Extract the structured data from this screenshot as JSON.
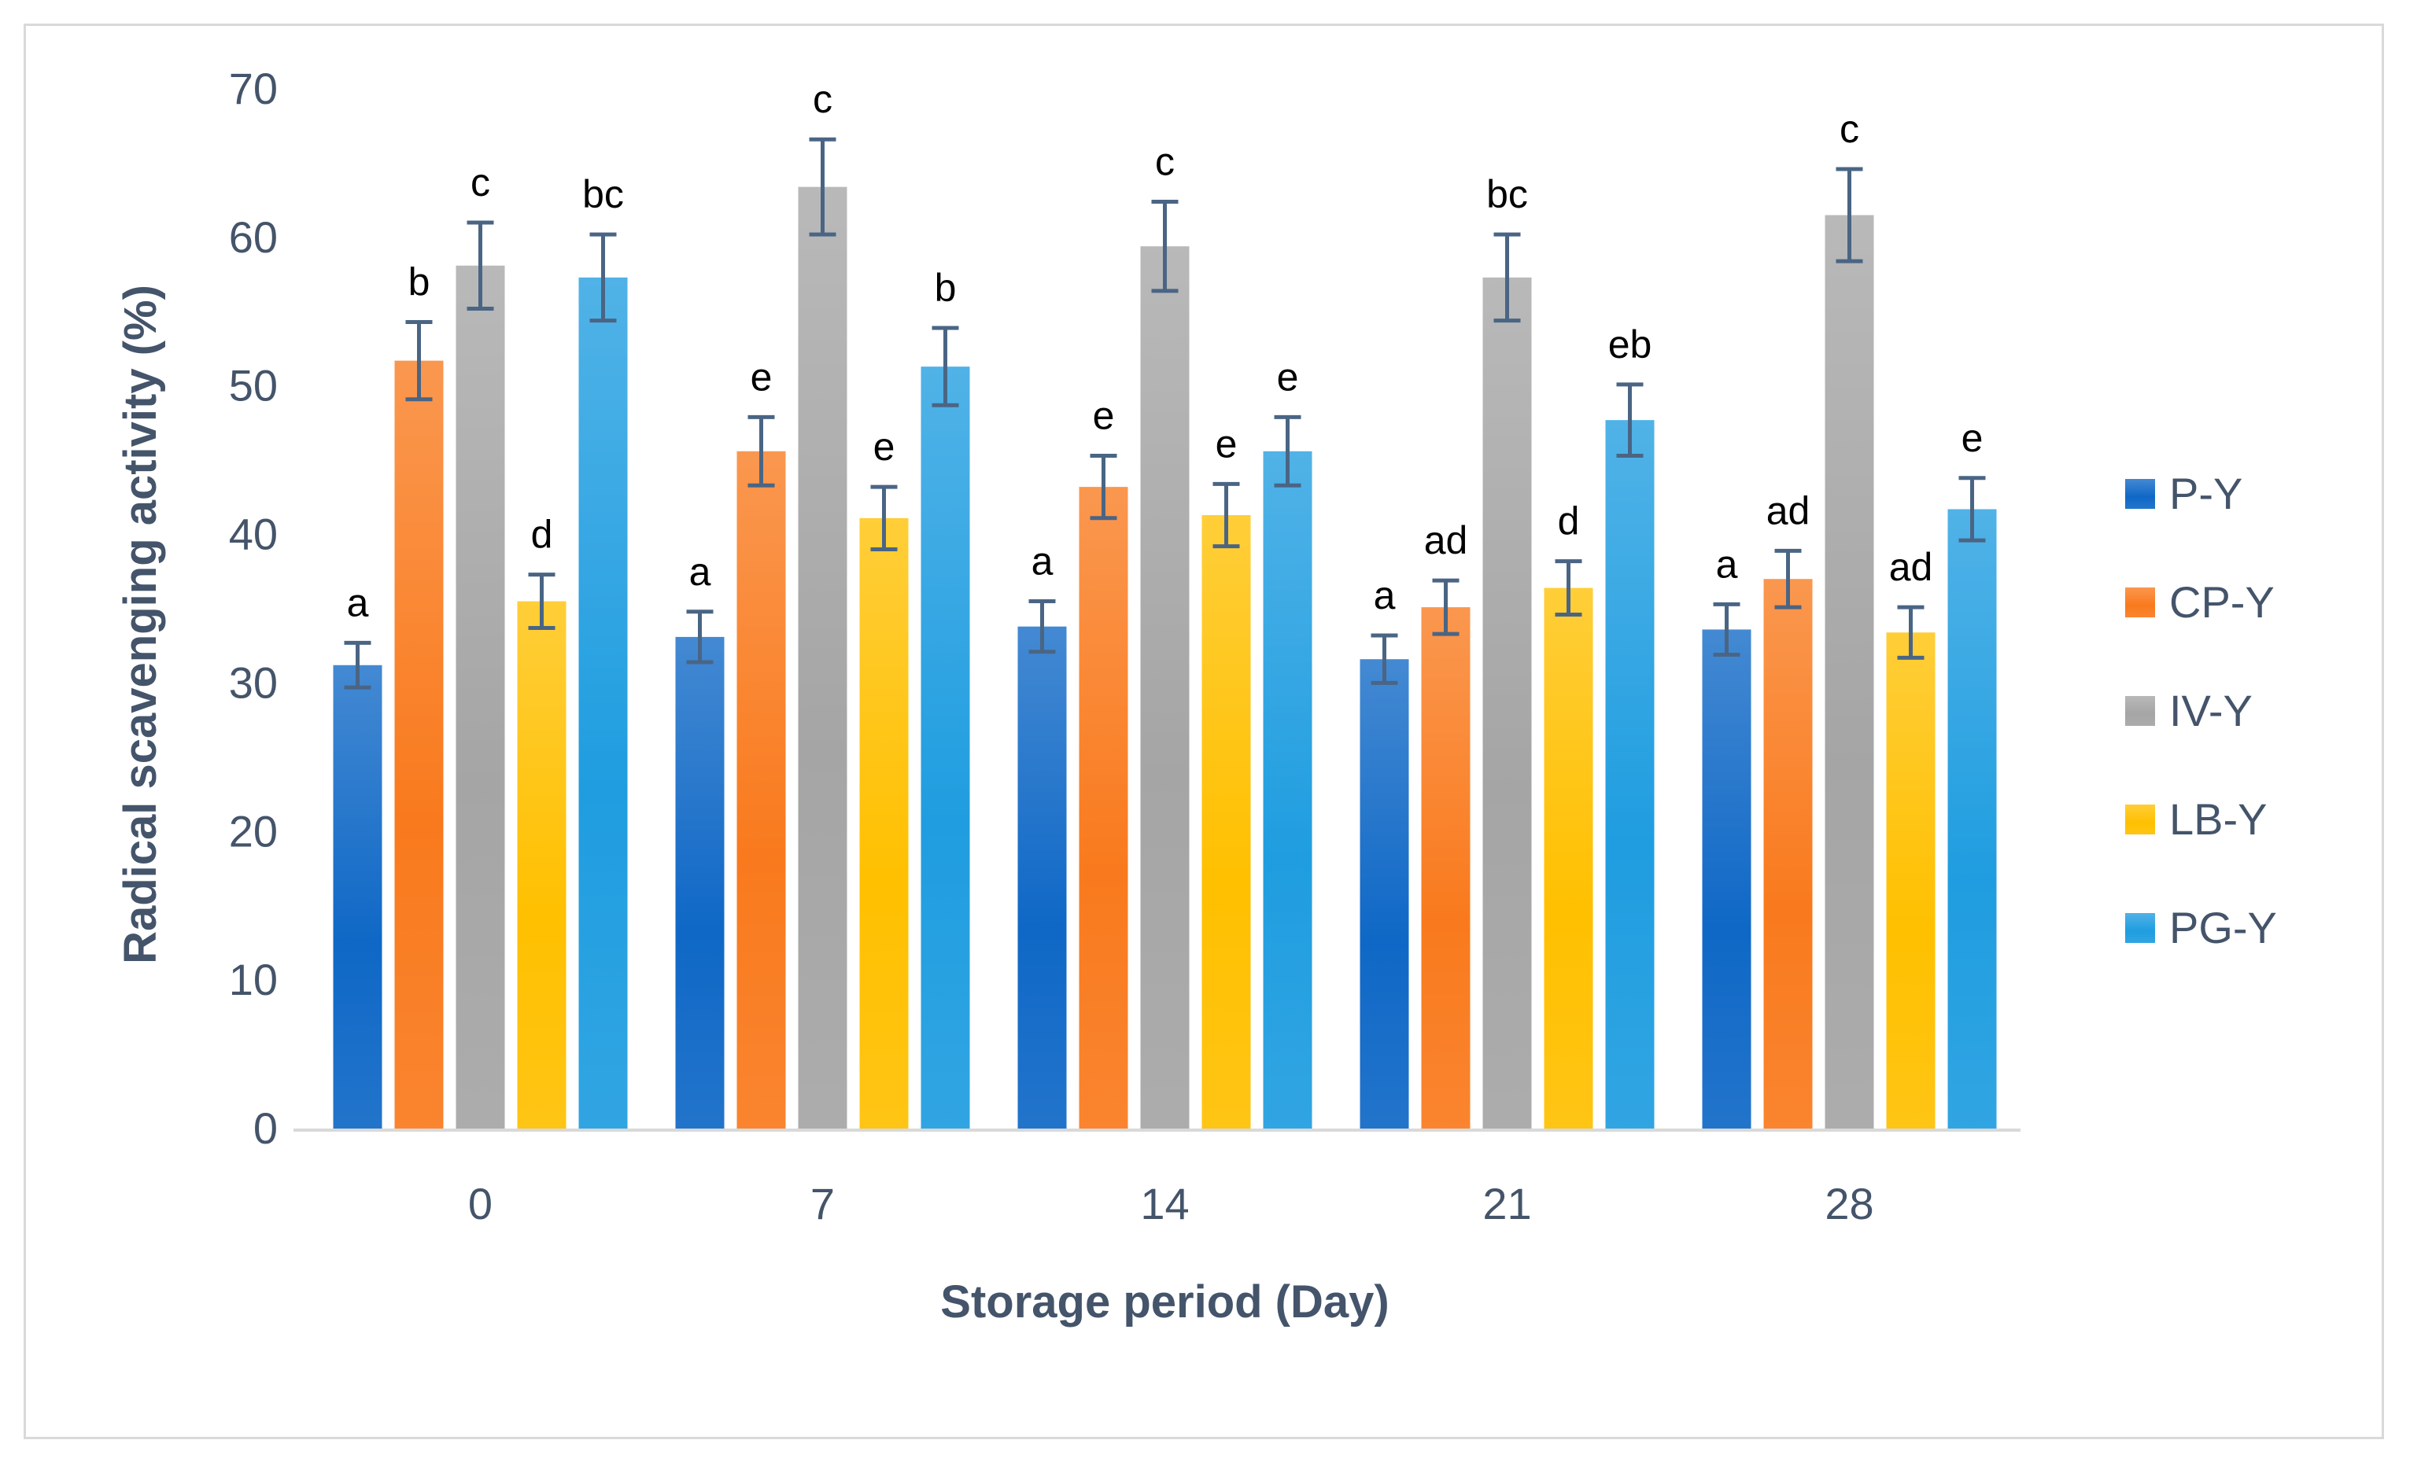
{
  "chart_data": {
    "type": "bar",
    "xlabel": "Storage period (Day)",
    "ylabel": "Radical scavenging activity (%)",
    "ylim": [
      0,
      70
    ],
    "yticks": [
      "0",
      "10",
      "20",
      "30",
      "40",
      "50",
      "60",
      "70"
    ],
    "categories": [
      "0",
      "7",
      "14",
      "21",
      "28"
    ],
    "legend_position": "right",
    "grid": false,
    "series": [
      {
        "name": "P-Y",
        "color": "#0f68c6",
        "values": [
          31.2,
          33.1,
          33.8,
          31.6,
          33.6
        ],
        "errors": [
          1.5,
          1.7,
          1.7,
          1.6,
          1.7
        ],
        "letters": [
          "a",
          "a",
          "a",
          "a",
          "a"
        ]
      },
      {
        "name": "CP-Y",
        "color": "#f97a1d",
        "values": [
          51.7,
          45.6,
          43.2,
          35.1,
          37.0
        ],
        "errors": [
          2.6,
          2.3,
          2.1,
          1.8,
          1.9
        ],
        "letters": [
          "b",
          "e",
          "e",
          "ad",
          "ad"
        ]
      },
      {
        "name": "IV-Y",
        "color": "#a5a5a5",
        "values": [
          58.1,
          63.4,
          59.4,
          57.3,
          61.5
        ],
        "errors": [
          2.9,
          3.2,
          3.0,
          2.9,
          3.1
        ],
        "letters": [
          "c",
          "c",
          "c",
          "bc",
          "c"
        ]
      },
      {
        "name": "LB-Y",
        "color": "#ffc000",
        "values": [
          35.5,
          41.1,
          41.3,
          36.4,
          33.4
        ],
        "errors": [
          1.8,
          2.1,
          2.1,
          1.8,
          1.7
        ],
        "letters": [
          "d",
          "e",
          "e",
          "d",
          "ad"
        ]
      },
      {
        "name": "PG-Y",
        "color": "#1f9de0",
        "values": [
          57.3,
          51.3,
          45.6,
          47.7,
          41.7
        ],
        "errors": [
          2.9,
          2.6,
          2.3,
          2.4,
          2.1
        ],
        "letters": [
          "bc",
          "b",
          "e",
          "eb",
          "e"
        ]
      }
    ]
  }
}
